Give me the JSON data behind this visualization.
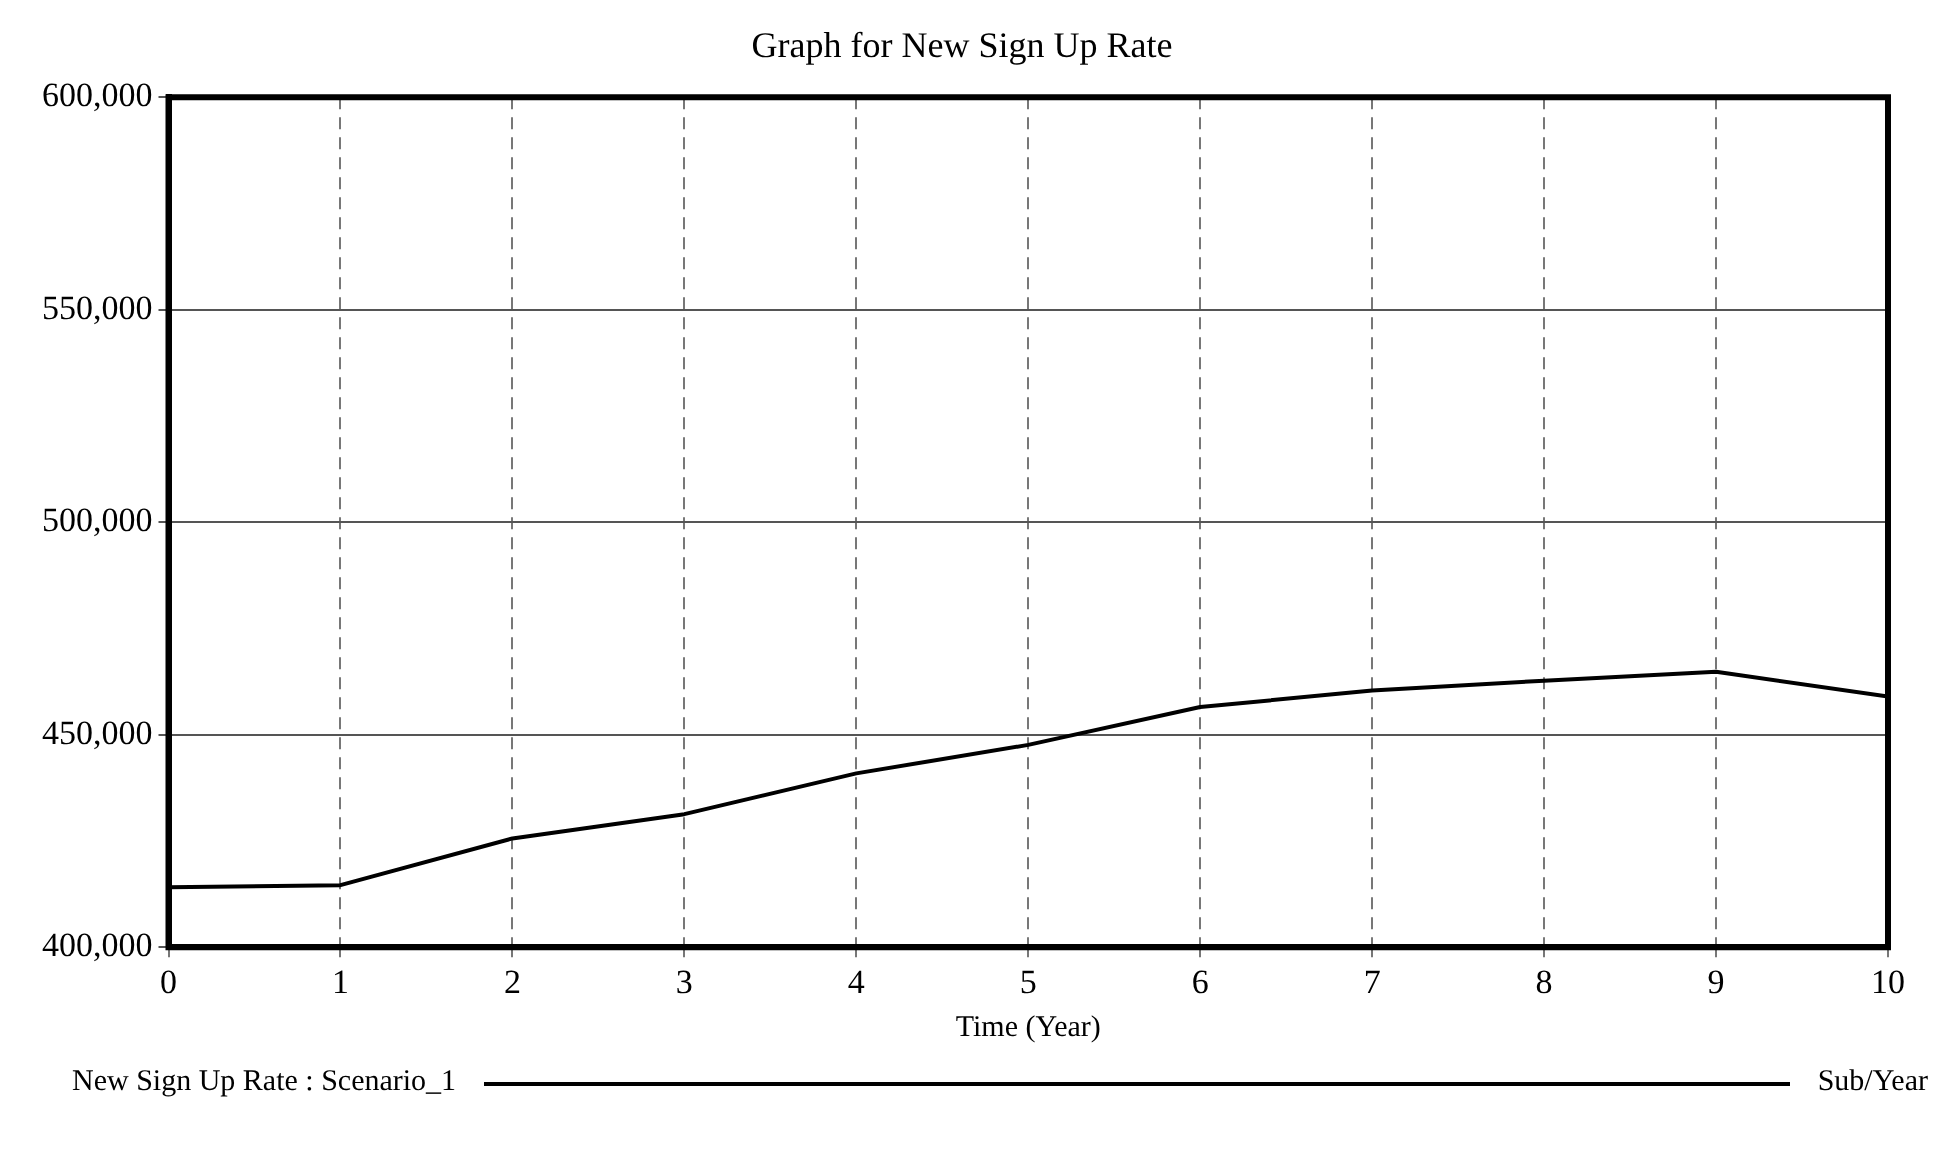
{
  "chart_data": {
    "type": "line",
    "title": "Graph for New Sign Up Rate",
    "xlabel": "Time (Year)",
    "x": [
      0,
      1,
      2,
      3,
      4,
      5,
      6,
      7,
      8,
      9,
      10
    ],
    "series": [
      {
        "name": "New Sign Up Rate : Scenario_1",
        "color": "#000000",
        "values": [
          414100,
          414600,
          425600,
          431300,
          440900,
          447600,
          456500,
          460400,
          462700,
          464800,
          459000
        ]
      }
    ],
    "xlim": [
      0,
      10
    ],
    "xticks": [
      0,
      1,
      2,
      3,
      4,
      5,
      6,
      7,
      8,
      9,
      10
    ],
    "ylim": [
      400000,
      600000
    ],
    "yticks": [
      {
        "value": 400000,
        "label": "400,000"
      },
      {
        "value": 450000,
        "label": "450,000"
      },
      {
        "value": 500000,
        "label": "500,000"
      },
      {
        "value": 550000,
        "label": "550,000"
      },
      {
        "value": 600000,
        "label": "600,000"
      }
    ],
    "grid": true,
    "legend": "bottom",
    "marker": "none",
    "line_style": "solid",
    "annotations": [
      "Sub/Year"
    ]
  }
}
